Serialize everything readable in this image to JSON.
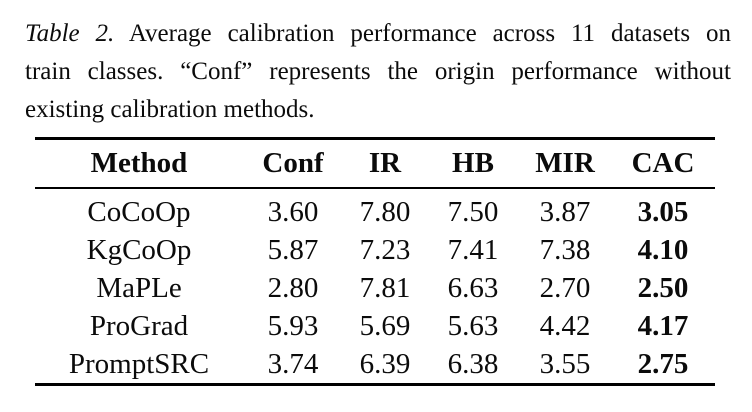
{
  "caption": {
    "label": "Table 2.",
    "line1_rest": "Average calibration performance across 11 datasets on",
    "line2": "train classes. “Conf” represents the origin performance without",
    "line3": "existing calibration methods."
  },
  "table": {
    "columns": [
      "Method",
      "Conf",
      "IR",
      "HB",
      "MIR",
      "CAC"
    ],
    "rows": [
      {
        "method": "CoCoOp",
        "values": [
          "3.60",
          "7.80",
          "7.50",
          "3.87",
          "3.05"
        ]
      },
      {
        "method": "KgCoOp",
        "values": [
          "5.87",
          "7.23",
          "7.41",
          "7.38",
          "4.10"
        ]
      },
      {
        "method": "MaPLe",
        "values": [
          "2.80",
          "7.81",
          "6.63",
          "2.70",
          "2.50"
        ]
      },
      {
        "method": "ProGrad",
        "values": [
          "5.93",
          "5.69",
          "5.63",
          "4.42",
          "4.17"
        ]
      },
      {
        "method": "PromptSRC",
        "values": [
          "3.74",
          "6.39",
          "6.38",
          "3.55",
          "2.75"
        ]
      }
    ],
    "bold_column": "CAC"
  },
  "colors": {
    "background": "#ffffff",
    "text": "#0b0b0b",
    "rule": "#000000"
  }
}
